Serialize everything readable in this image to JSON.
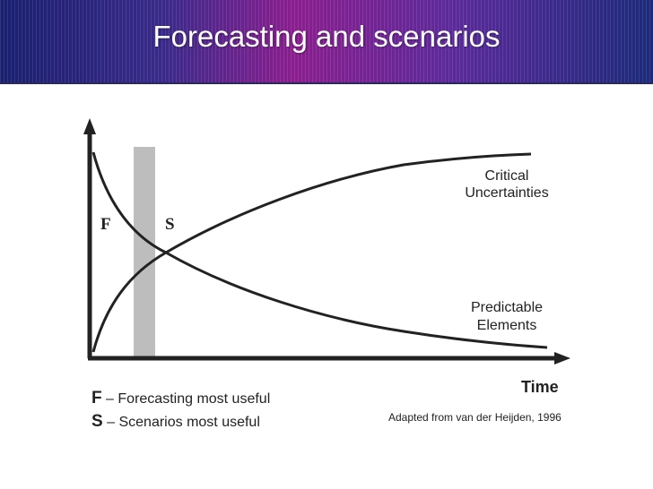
{
  "slide": {
    "title": "Forecasting and scenarios"
  },
  "diagram": {
    "curve_labels": {
      "critical_line1": "Critical",
      "critical_line2": "Uncertainties",
      "predictable_line1": "Predictable",
      "predictable_line2": "Elements"
    },
    "zone_labels": {
      "f": "F",
      "s": "S"
    },
    "x_axis_label": "Time"
  },
  "legend": {
    "f_key": "F",
    "f_text": " – Forecasting most useful",
    "s_key": "S",
    "s_text": " – Scenarios most useful"
  },
  "credit": "Adapted from van der Heijden, 1996",
  "colors": {
    "header_left": "#1a1f6e",
    "header_mid": "#8a1e8e",
    "band": "#bdbdbd",
    "ink": "#222222"
  }
}
